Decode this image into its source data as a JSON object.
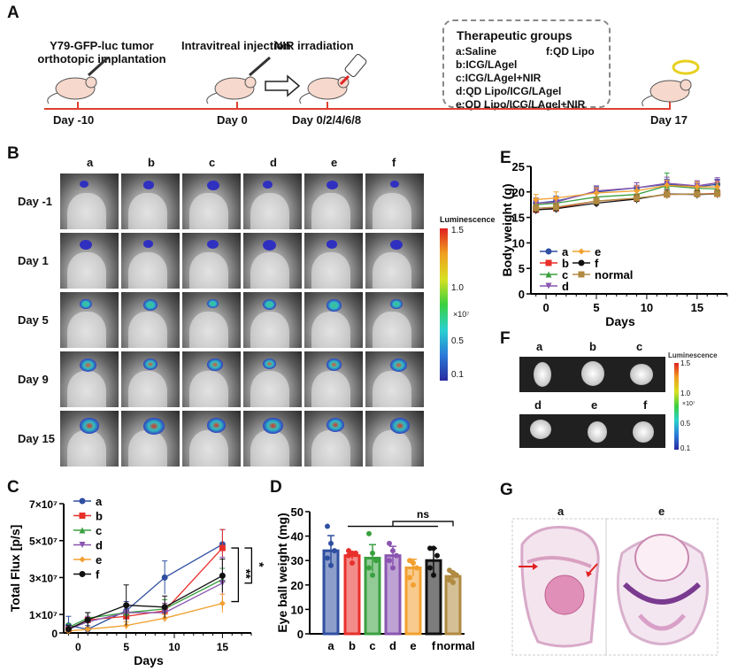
{
  "panels": {
    "A": {
      "label": "A",
      "step1": [
        "Y79-GFP-luc tumor",
        "orthotopic implantation"
      ],
      "step2": "Intravitreal injection",
      "step3": "NIR irradiation",
      "groups_title": "Therapeutic groups",
      "groups": [
        "a:Saline",
        "f:QD Lipo",
        "b:ICG/LAgel",
        "c:ICG/LAgel+NIR",
        "d:QD Lipo/ICG/LAgel",
        "e:QD Lipo/ICG/LAgel+NIR"
      ],
      "days": [
        "Day -10",
        "Day 0",
        "Day 0/2/4/6/8",
        "Day 17"
      ]
    },
    "B": {
      "label": "B",
      "columns": [
        "a",
        "b",
        "c",
        "d",
        "e",
        "f"
      ],
      "rows": [
        "Day -1",
        "Day 1",
        "Day 5",
        "Day 9",
        "Day 15"
      ],
      "colorbar_title": "Luminescence",
      "colorbar_ticks": [
        "1.5",
        "1.0",
        "×10⁷",
        "0.5",
        "0.1"
      ]
    },
    "F": {
      "label": "F",
      "top_labels": [
        "a",
        "b",
        "c"
      ],
      "bottom_labels": [
        "d",
        "e",
        "f"
      ],
      "colorbar_title": "Luminescence",
      "colorbar_ticks": [
        "1.5",
        "1.0",
        "×10⁷",
        "0.5",
        "0.1"
      ]
    },
    "G": {
      "label": "G",
      "labels": [
        "a",
        "e"
      ]
    },
    "C": {
      "label": "C"
    },
    "D": {
      "label": "D"
    },
    "E": {
      "label": "E"
    }
  },
  "colors": {
    "a": "#2f4fa0",
    "b": "#e8302a",
    "c": "#3aa040",
    "d": "#8a55b0",
    "e": "#f2a030",
    "f": "#111111",
    "normal": "#b08a40",
    "timeline": "#e04030"
  },
  "chart_data": [
    {
      "id": "C",
      "type": "line",
      "xlabel": "Days",
      "ylabel": "Total Flux [p/s]",
      "x": [
        -1,
        1,
        5,
        9,
        15
      ],
      "xticks": [
        "0",
        "5",
        "10",
        "15"
      ],
      "xtick_values": [
        0,
        5,
        10,
        15
      ],
      "yticks": [
        "0",
        "1×10⁷",
        "3×10⁷",
        "5×10⁷",
        "7×10⁷"
      ],
      "ytick_values": [
        0,
        10000000.0,
        30000000.0,
        50000000.0,
        70000000.0
      ],
      "ylim": [
        0,
        70000000.0
      ],
      "xlim": [
        -1.5,
        18
      ],
      "series": [
        {
          "name": "a",
          "values": [
            4000000.0,
            2000000.0,
            12000000.0,
            30000000.0,
            48000000.0
          ],
          "err": [
            5000000.0,
            2000000.0,
            5000000.0,
            9000000.0,
            8000000.0
          ],
          "marker": "circle"
        },
        {
          "name": "b",
          "values": [
            2000000.0,
            7000000.0,
            9000000.0,
            12000000.0,
            46000000.0
          ],
          "err": [
            2000000.0,
            4000000.0,
            3000000.0,
            4000000.0,
            10000000.0
          ],
          "marker": "square"
        },
        {
          "name": "c",
          "values": [
            3000000.0,
            8000000.0,
            11000000.0,
            13000000.0,
            29000000.0
          ],
          "err": [
            2000000.0,
            3000000.0,
            4000000.0,
            5000000.0,
            6000000.0
          ],
          "marker": "triangle"
        },
        {
          "name": "d",
          "values": [
            2000000.0,
            6000000.0,
            11000000.0,
            11000000.0,
            27000000.0
          ],
          "err": [
            2000000.0,
            3000000.0,
            4000000.0,
            5000000.0,
            14000000.0
          ],
          "marker": "tri-down"
        },
        {
          "name": "e",
          "values": [
            1000000.0,
            2000000.0,
            4000000.0,
            8000000.0,
            16000000.0
          ],
          "err": [
            1000000.0,
            1000000.0,
            2000000.0,
            2000000.0,
            5000000.0
          ],
          "marker": "diamond"
        },
        {
          "name": "f",
          "values": [
            2000000.0,
            7000000.0,
            15000000.0,
            14000000.0,
            31000000.0
          ],
          "err": [
            2000000.0,
            4000000.0,
            11000000.0,
            6000000.0,
            9000000.0
          ],
          "marker": "circle"
        }
      ],
      "significance": [
        "**",
        "*"
      ],
      "legend": "top-left"
    },
    {
      "id": "D",
      "type": "bar",
      "ylabel": "Eye ball weight (mg)",
      "categories": [
        "a",
        "b",
        "c",
        "d",
        "e",
        "f",
        "normal"
      ],
      "values": [
        34,
        32,
        31,
        32,
        27,
        30,
        23.5
      ],
      "err": [
        6.2,
        1.5,
        5.5,
        3.8,
        3.5,
        5,
        1.5
      ],
      "points": [
        [
          44,
          37,
          34,
          31,
          28
        ],
        [
          34,
          33,
          33,
          32,
          29
        ],
        [
          41,
          33,
          30,
          27,
          24
        ],
        [
          37,
          34,
          32,
          30,
          27
        ],
        [
          30,
          29,
          27,
          23,
          20
        ],
        [
          35,
          35,
          32,
          27,
          24
        ],
        [
          26,
          25,
          24,
          22,
          21
        ]
      ],
      "yticks": [
        "0",
        "10",
        "20",
        "30",
        "40",
        "50"
      ],
      "ytick_values": [
        0,
        10,
        20,
        30,
        40,
        50
      ],
      "ylim": [
        0,
        50
      ],
      "significance": "ns"
    },
    {
      "id": "E",
      "type": "line",
      "xlabel": "Days",
      "ylabel": "Body weight (g)",
      "x": [
        -1,
        1,
        5,
        9,
        12,
        15,
        17
      ],
      "xticks": [
        "0",
        "5",
        "10",
        "15"
      ],
      "xtick_values": [
        0,
        5,
        10,
        15
      ],
      "yticks": [
        "0",
        "5",
        "10",
        "15",
        "20",
        "25"
      ],
      "ytick_values": [
        0,
        5,
        10,
        15,
        20,
        25
      ],
      "ylim": [
        0,
        25
      ],
      "xlim": [
        -1.5,
        18
      ],
      "series": [
        {
          "name": "a",
          "values": [
            17.8,
            18.2,
            20.0,
            20.8,
            21.5,
            21.0,
            21.5
          ],
          "err": [
            1,
            1,
            1,
            1,
            1,
            1,
            1
          ],
          "marker": "circle"
        },
        {
          "name": "b",
          "values": [
            16.5,
            16.8,
            18.2,
            18.7,
            19.5,
            19.6,
            19.7
          ],
          "err": [
            0.8,
            0.8,
            0.8,
            0.8,
            0.8,
            0.8,
            0.8
          ],
          "marker": "square"
        },
        {
          "name": "c",
          "values": [
            17.5,
            17.8,
            19.0,
            19.5,
            21.2,
            20.7,
            20.6
          ],
          "err": [
            1,
            1,
            1,
            1,
            2.5,
            1,
            1
          ],
          "marker": "triangle"
        },
        {
          "name": "d",
          "values": [
            17.8,
            18.0,
            20.2,
            20.8,
            21.7,
            21.2,
            21.8
          ],
          "err": [
            1,
            1,
            1,
            1,
            1.2,
            1,
            1
          ],
          "marker": "tri-down"
        },
        {
          "name": "e",
          "values": [
            18.5,
            18.8,
            19.8,
            20.2,
            21.3,
            21.0,
            21.0
          ],
          "err": [
            1,
            1.2,
            1,
            1,
            1,
            1,
            1
          ],
          "marker": "diamond"
        },
        {
          "name": "f",
          "values": [
            16.5,
            16.7,
            17.8,
            18.6,
            19.6,
            19.5,
            19.6
          ],
          "err": [
            0.8,
            0.8,
            0.8,
            0.8,
            0.8,
            0.8,
            0.8
          ],
          "marker": "circle"
        },
        {
          "name": "normal",
          "values": [
            16.8,
            17.0,
            18.2,
            18.8,
            19.5,
            19.6,
            19.6
          ],
          "err": [
            0.8,
            0.8,
            0.8,
            0.8,
            0.8,
            0.8,
            0.8
          ],
          "marker": "square"
        }
      ],
      "legend": "bottom-left"
    }
  ]
}
